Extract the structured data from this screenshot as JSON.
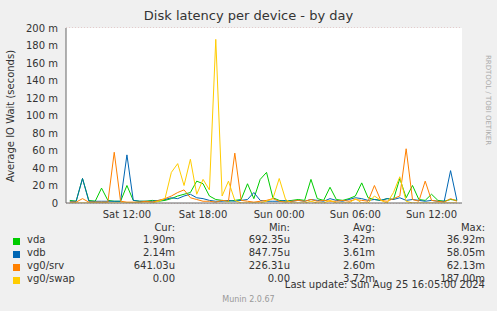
{
  "chart_data": {
    "type": "line",
    "title": "Disk latency per device - by day",
    "y_label": "Average IO Wait (seconds)",
    "x": [
      7.5,
      8,
      8.5,
      9,
      9.5,
      10,
      10.5,
      11,
      11.5,
      12,
      12.5,
      13,
      13.5,
      14,
      14.5,
      15,
      15.5,
      16,
      16.5,
      17,
      17.5,
      18,
      18.5,
      19,
      19.5,
      20,
      20.5,
      21,
      21.5,
      22,
      22.5,
      23,
      23.5,
      24,
      24.5,
      25,
      25.5,
      26,
      26.5,
      27,
      27.5,
      28,
      28.5,
      29,
      29.5,
      30,
      30.5,
      31,
      31.5,
      32,
      32.5,
      33,
      33.5,
      34,
      34.5,
      35,
      35.5,
      36,
      36.5,
      37,
      37.5,
      38
    ],
    "xlim": [
      7.2,
      38.4
    ],
    "xticks": [
      {
        "value": 12,
        "label": "Sat 12:00"
      },
      {
        "value": 18,
        "label": "Sat 18:00"
      },
      {
        "value": 24,
        "label": "Sun 00:00"
      },
      {
        "value": 30,
        "label": "Sun 06:00"
      },
      {
        "value": 36,
        "label": "Sun 12:00"
      }
    ],
    "ylim": [
      0,
      200
    ],
    "yticks": [
      0,
      {
        "value": 20,
        "label": "20 m"
      },
      {
        "value": 40,
        "label": "40 m"
      },
      {
        "value": 60,
        "label": "60 m"
      },
      {
        "value": 80,
        "label": "80 m"
      },
      {
        "value": 100,
        "label": "100 m"
      },
      {
        "value": 120,
        "label": "120 m"
      },
      {
        "value": 140,
        "label": "140 m"
      },
      {
        "value": 160,
        "label": "160 m"
      },
      {
        "value": 180,
        "label": "180 m"
      },
      {
        "value": 200,
        "label": "200 m"
      }
    ],
    "grid": true,
    "series": [
      {
        "name": "vda",
        "color": "#00cc00",
        "values": [
          3,
          2,
          28,
          3,
          2,
          17,
          3,
          2,
          2,
          20,
          3,
          2,
          2,
          3,
          2,
          3,
          5,
          8,
          10,
          12,
          25,
          22,
          8,
          4,
          3,
          2,
          3,
          4,
          22,
          5,
          27,
          35,
          6,
          3,
          2,
          3,
          4,
          3,
          27,
          5,
          3,
          18,
          4,
          3,
          5,
          8,
          23,
          6,
          4,
          3,
          5,
          4,
          28,
          6,
          20,
          4,
          3,
          10,
          3,
          2,
          4,
          3
        ]
      },
      {
        "name": "vdb",
        "color": "#0066b3",
        "values": [
          2,
          2,
          28,
          2,
          2,
          2,
          2,
          2,
          2,
          55,
          3,
          2,
          2,
          2,
          3,
          4,
          6,
          5,
          8,
          10,
          6,
          5,
          3,
          2,
          2,
          3,
          2,
          3,
          4,
          12,
          3,
          2,
          2,
          2,
          3,
          2,
          3,
          2,
          4,
          3,
          2,
          5,
          3,
          2,
          4,
          6,
          5,
          3,
          4,
          3,
          5,
          4,
          6,
          3,
          4,
          3,
          2,
          3,
          2,
          2,
          37,
          3
        ]
      },
      {
        "name": "vg0/srv",
        "color": "#ff8000",
        "values": [
          1,
          1,
          5,
          1,
          1,
          1,
          1,
          58,
          2,
          1,
          1,
          1,
          2,
          1,
          3,
          5,
          8,
          12,
          15,
          6,
          4,
          2,
          2,
          1,
          3,
          2,
          57,
          3,
          2,
          1,
          2,
          3,
          5,
          2,
          1,
          2,
          3,
          2,
          4,
          2,
          3,
          2,
          2,
          3,
          2,
          4,
          3,
          2,
          20,
          3,
          2,
          5,
          8,
          62,
          4,
          2,
          25,
          3,
          2,
          1,
          5,
          2
        ]
      },
      {
        "name": "vg0/swap",
        "color": "#ffcc00",
        "values": [
          0,
          0,
          0,
          0,
          0,
          0,
          0,
          0,
          0,
          0,
          0,
          0,
          0,
          0,
          2,
          5,
          35,
          45,
          20,
          50,
          10,
          27,
          15,
          187,
          8,
          25,
          3,
          0,
          0,
          0,
          0,
          2,
          5,
          28,
          4,
          0,
          0,
          0,
          2,
          0,
          0,
          3,
          0,
          0,
          0,
          5,
          0,
          0,
          8,
          3,
          0,
          12,
          30,
          2,
          0,
          0,
          0,
          0,
          0,
          0,
          0,
          0
        ]
      }
    ]
  },
  "legend_table": {
    "columns": [
      "Cur:",
      "Min:",
      "Avg:",
      "Max:"
    ],
    "rows": [
      [
        "1.90m",
        "692.35u",
        "3.42m",
        "36.92m"
      ],
      [
        "2.14m",
        "847.75u",
        "3.61m",
        "58.05m"
      ],
      [
        "641.03u",
        "226.31u",
        "2.60m",
        "62.13m"
      ],
      [
        "0.00",
        "0.00",
        "3.72m",
        "187.00m"
      ]
    ]
  },
  "annotations": [
    "RRDTOOL / TOBI OETIKER"
  ],
  "footer": [
    "Last update: Sun Aug 25 16:05:00 2024",
    "Munin 2.0.67"
  ]
}
